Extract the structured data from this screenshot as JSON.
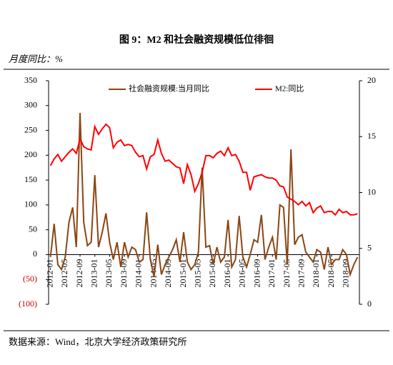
{
  "chart_data": {
    "type": "line",
    "title": "图 9：M2 和社会融资规模低位徘徊",
    "y_label": "月度同比：%",
    "source": "数据来源：Wind，北京大学经济政策研究所",
    "categories": [
      "2012-01",
      null,
      null,
      null,
      "2012-05",
      null,
      null,
      null,
      "2012-09",
      null,
      null,
      null,
      "2013-01",
      null,
      null,
      null,
      "2013-05",
      null,
      null,
      null,
      "2013-09",
      null,
      null,
      null,
      "2014-01",
      null,
      null,
      null,
      "2014-05",
      null,
      null,
      null,
      "2014-09",
      null,
      null,
      null,
      "2015-01",
      null,
      null,
      null,
      "2015-05",
      null,
      null,
      null,
      "2015-09",
      null,
      null,
      null,
      "2016-01",
      null,
      null,
      null,
      "2016-05",
      null,
      null,
      null,
      "2016-09",
      null,
      null,
      null,
      "2017-01",
      null,
      null,
      null,
      "2017-05",
      null,
      null,
      null,
      "2017-09",
      null,
      null,
      null,
      "2018-01",
      null,
      null,
      null,
      "2018-05",
      null,
      null,
      null,
      "2018-09",
      null,
      null,
      null
    ],
    "series": [
      {
        "name": "社会融资规模:当月同比",
        "color": "#8b4513",
        "values": [
          -5,
          62,
          -20,
          -30,
          -5,
          65,
          95,
          15,
          285,
          65,
          18,
          25,
          160,
          15,
          45,
          83,
          25,
          -10,
          25,
          -25,
          25,
          -5,
          15,
          10,
          -15,
          -10,
          85,
          -10,
          -45,
          20,
          -40,
          -20,
          -5,
          10,
          30,
          -15,
          45,
          -15,
          -30,
          -20,
          5,
          175,
          15,
          18,
          -20,
          15,
          -15,
          -5,
          70,
          -25,
          -10,
          78,
          -5,
          -25,
          0,
          30,
          25,
          80,
          -10,
          15,
          35,
          -10,
          100,
          95,
          -20,
          212,
          20,
          35,
          40,
          5,
          -5,
          -15,
          10,
          5,
          -30,
          15,
          -20,
          -10,
          -10,
          10,
          0,
          -40,
          -20,
          -5
        ]
      },
      {
        "name": "M2:同比",
        "color": "#ff0000",
        "axis": "y2",
        "values": [
          12.4,
          13.0,
          13.4,
          12.8,
          13.2,
          13.6,
          13.9,
          13.5,
          14.8,
          14.1,
          13.9,
          13.8,
          15.9,
          15.2,
          15.7,
          16.1,
          15.8,
          14.0,
          14.5,
          14.7,
          14.2,
          14.3,
          14.2,
          13.6,
          13.2,
          13.3,
          12.1,
          13.2,
          13.4,
          14.7,
          13.5,
          12.8,
          12.9,
          12.6,
          12.3,
          12.2,
          10.8,
          12.5,
          11.6,
          10.1,
          10.8,
          11.8,
          13.3,
          13.3,
          13.1,
          13.5,
          13.7,
          13.3,
          14.0,
          13.3,
          13.4,
          12.8,
          11.8,
          11.8,
          10.2,
          11.4,
          11.5,
          11.6,
          11.4,
          11.3,
          11.3,
          11.1,
          10.6,
          10.5,
          9.6,
          9.4,
          9.2,
          8.9,
          9.2,
          8.8,
          9.1,
          8.2,
          8.6,
          8.8,
          8.2,
          8.3,
          8.3,
          8.0,
          8.5,
          8.2,
          8.3,
          8.0,
          8.0,
          8.1
        ]
      }
    ],
    "ylim": [
      -100,
      350
    ],
    "yticks": [
      {
        "value": -100,
        "label": "(100)"
      },
      {
        "value": -50,
        "label": "(50)"
      },
      0,
      50,
      100,
      150,
      200,
      250,
      300,
      350
    ],
    "y2lim": [
      0,
      20
    ],
    "y2ticks": [
      0,
      5,
      10,
      15,
      20
    ]
  }
}
